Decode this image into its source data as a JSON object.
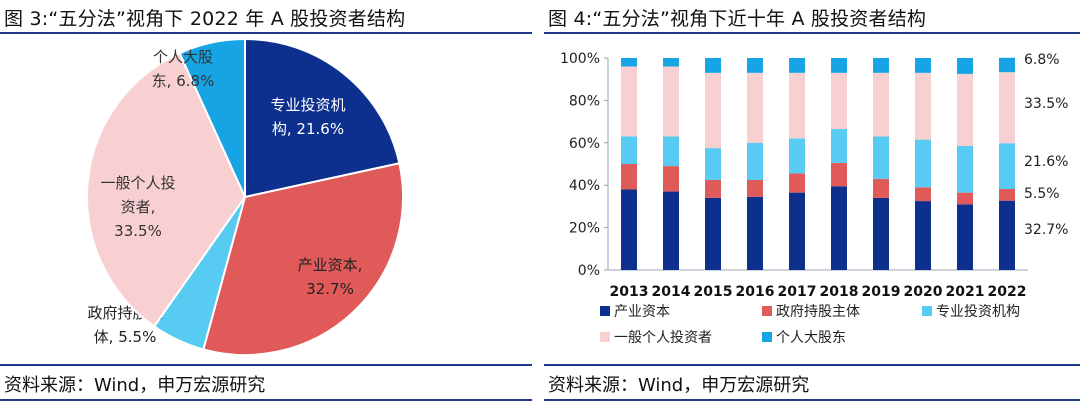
{
  "colors": {
    "industrial": "#0d2f8e",
    "government": "#e05a5a",
    "institution": "#58cbf3",
    "retail": "#f8d0d2",
    "major": "#17a4e5",
    "rule": "#1f3a8a"
  },
  "left": {
    "title": "图 3:“五分法”视角下 2022 年 A 股投资者结构",
    "source": "资料来源：Wind，申万宏源研究"
  },
  "right": {
    "title": "图 4:“五分法”视角下近十年 A 股投资者结构",
    "source": "资料来源：Wind，申万宏源研究"
  },
  "chart_data": [
    {
      "type": "pie",
      "title": "",
      "slices": [
        {
          "label": [
            "专业投资机",
            "构, 21.6%"
          ],
          "value": 21.6,
          "color_key": "institution_dark"
        },
        {
          "label": [
            "产业资本,",
            "32.7%"
          ],
          "value": 32.7,
          "color_key": "government"
        },
        {
          "label": [
            "政府持股主",
            "体, 5.5%"
          ],
          "value": 5.5,
          "color_key": "institution"
        },
        {
          "label": [
            "一般个人投",
            "资者,",
            "33.5%"
          ],
          "value": 33.5,
          "color_key": "retail"
        },
        {
          "label": [
            "个人大股",
            "东, 6.8%"
          ],
          "value": 6.8,
          "color_key": "major"
        }
      ]
    },
    {
      "type": "bar",
      "stacked": true,
      "categories": [
        "2013",
        "2014",
        "2015",
        "2016",
        "2017",
        "2018",
        "2019",
        "2020",
        "2021",
        "2022"
      ],
      "ylim": [
        0,
        100
      ],
      "yticks": [
        "0%",
        "20%",
        "40%",
        "60%",
        "80%",
        "100%"
      ],
      "series": [
        {
          "name": "产业资本",
          "color_key": "industrial",
          "values": [
            38,
            37,
            34,
            34.5,
            36.5,
            39.5,
            34,
            32.5,
            31,
            32.7
          ]
        },
        {
          "name": "政府持股主体",
          "color_key": "government",
          "values": [
            12,
            12,
            8.5,
            8,
            9,
            11,
            9,
            6.5,
            5.5,
            5.5
          ]
        },
        {
          "name": "专业投资机构",
          "color_key": "institution",
          "values": [
            13,
            14,
            15,
            17.5,
            16.5,
            16,
            20,
            22.5,
            22,
            21.6
          ]
        },
        {
          "name": "一般个人投资者",
          "color_key": "retail",
          "values": [
            33,
            33,
            35.5,
            33,
            31,
            26.5,
            30,
            31.5,
            34,
            33.5
          ]
        },
        {
          "name": "个人大股东",
          "color_key": "major",
          "values": [
            4,
            4,
            7,
            7,
            7,
            7,
            7,
            7,
            7.5,
            6.8
          ]
        }
      ],
      "end_labels": [
        "6.8%",
        "33.5%",
        "21.6%",
        "5.5%",
        "32.7%"
      ],
      "legend_placement": "bottom"
    }
  ]
}
